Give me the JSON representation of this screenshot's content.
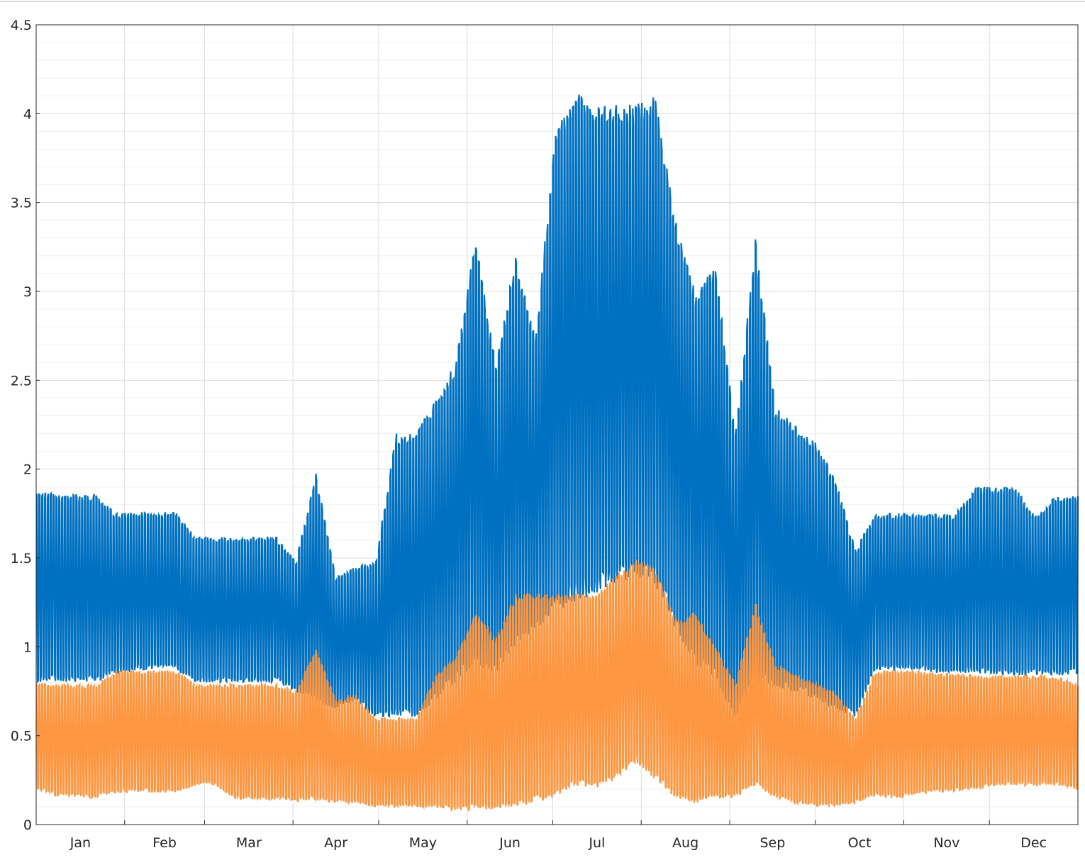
{
  "chart_data": {
    "type": "area",
    "title": "",
    "xlabel": "",
    "ylabel": "",
    "xlim": [
      0,
      365
    ],
    "ylim": [
      0,
      4.5
    ],
    "grid": true,
    "legend": "none",
    "y_ticks": [
      0,
      0.5,
      1,
      1.5,
      2,
      2.5,
      3,
      3.5,
      4,
      4.5
    ],
    "y_tick_labels": [
      "0",
      "0.5",
      "1",
      "1.5",
      "2",
      "2.5",
      "3",
      "3.5",
      "4",
      "4.5"
    ],
    "month_labels": [
      "Jan",
      "Feb",
      "Mar",
      "Apr",
      "May",
      "Jun",
      "Jul",
      "Aug",
      "Sep",
      "Oct",
      "Nov",
      "Dec"
    ],
    "month_start_days": [
      0,
      31,
      59,
      90,
      120,
      151,
      181,
      212,
      243,
      273,
      304,
      334
    ],
    "series": [
      {
        "color": "#0070c0",
        "weekly_day": [
          0,
          7,
          14,
          21,
          28,
          35,
          42,
          49,
          56,
          63,
          70,
          77,
          84,
          91,
          98,
          105,
          112,
          119,
          126,
          133,
          140,
          147,
          154,
          161,
          168,
          175,
          182,
          189,
          196,
          203,
          210,
          217,
          224,
          231,
          238,
          245,
          252,
          259,
          266,
          273,
          280,
          287,
          294,
          301,
          308,
          315,
          322,
          329,
          336,
          343,
          350,
          357,
          364
        ],
        "weekly_max": [
          1.88,
          1.86,
          1.86,
          1.86,
          1.75,
          1.76,
          1.76,
          1.76,
          1.62,
          1.62,
          1.62,
          1.62,
          1.62,
          1.48,
          1.98,
          1.4,
          1.45,
          1.48,
          2.2,
          2.2,
          2.4,
          2.6,
          3.3,
          2.6,
          3.2,
          2.75,
          3.9,
          4.15,
          4.05,
          4.05,
          4.05,
          4.1,
          3.4,
          3.0,
          3.15,
          2.2,
          3.3,
          2.35,
          2.25,
          2.15,
          1.95,
          1.55,
          1.75,
          1.75,
          1.75,
          1.75,
          1.75,
          1.9,
          1.9,
          1.9,
          1.74,
          1.85,
          1.85
        ],
        "weekly_min": [
          0.8,
          0.8,
          0.8,
          0.8,
          0.85,
          0.87,
          0.87,
          0.87,
          0.8,
          0.8,
          0.8,
          0.8,
          0.8,
          0.75,
          0.7,
          0.65,
          0.7,
          0.6,
          0.6,
          0.6,
          0.7,
          0.8,
          0.9,
          0.85,
          1.0,
          1.1,
          1.2,
          1.25,
          1.3,
          1.35,
          1.4,
          1.35,
          1.1,
          0.9,
          0.8,
          0.6,
          0.8,
          0.75,
          0.75,
          0.7,
          0.65,
          0.6,
          0.87,
          0.87,
          0.87,
          0.85,
          0.85,
          0.85,
          0.84,
          0.84,
          0.84,
          0.84,
          0.84
        ]
      },
      {
        "color": "#fd9640",
        "weekly_day": [
          0,
          7,
          14,
          21,
          28,
          35,
          42,
          49,
          56,
          63,
          70,
          77,
          84,
          91,
          98,
          105,
          112,
          119,
          126,
          133,
          140,
          147,
          154,
          161,
          168,
          175,
          182,
          189,
          196,
          203,
          210,
          217,
          224,
          231,
          238,
          245,
          252,
          259,
          266,
          273,
          280,
          287,
          294,
          301,
          308,
          315,
          322,
          329,
          336,
          343,
          350,
          357,
          364
        ],
        "weekly_max": [
          0.8,
          0.79,
          0.79,
          0.79,
          0.87,
          0.87,
          0.87,
          0.87,
          0.79,
          0.79,
          0.79,
          0.79,
          0.79,
          0.75,
          1.0,
          0.7,
          0.73,
          0.6,
          0.6,
          0.6,
          0.85,
          0.95,
          1.2,
          1.05,
          1.3,
          1.3,
          1.3,
          1.3,
          1.3,
          1.4,
          1.5,
          1.45,
          1.15,
          1.2,
          1.0,
          0.8,
          1.25,
          0.9,
          0.85,
          0.8,
          0.75,
          0.6,
          0.87,
          0.87,
          0.87,
          0.85,
          0.85,
          0.84,
          0.84,
          0.84,
          0.84,
          0.84,
          0.8
        ],
        "weekly_min": [
          0.2,
          0.16,
          0.15,
          0.15,
          0.18,
          0.18,
          0.18,
          0.18,
          0.22,
          0.22,
          0.14,
          0.14,
          0.14,
          0.13,
          0.13,
          0.12,
          0.12,
          0.1,
          0.1,
          0.1,
          0.09,
          0.08,
          0.08,
          0.08,
          0.1,
          0.12,
          0.15,
          0.22,
          0.2,
          0.25,
          0.35,
          0.25,
          0.15,
          0.12,
          0.15,
          0.15,
          0.22,
          0.15,
          0.12,
          0.1,
          0.1,
          0.12,
          0.15,
          0.15,
          0.16,
          0.18,
          0.18,
          0.2,
          0.22,
          0.22,
          0.22,
          0.22,
          0.2
        ]
      }
    ]
  }
}
